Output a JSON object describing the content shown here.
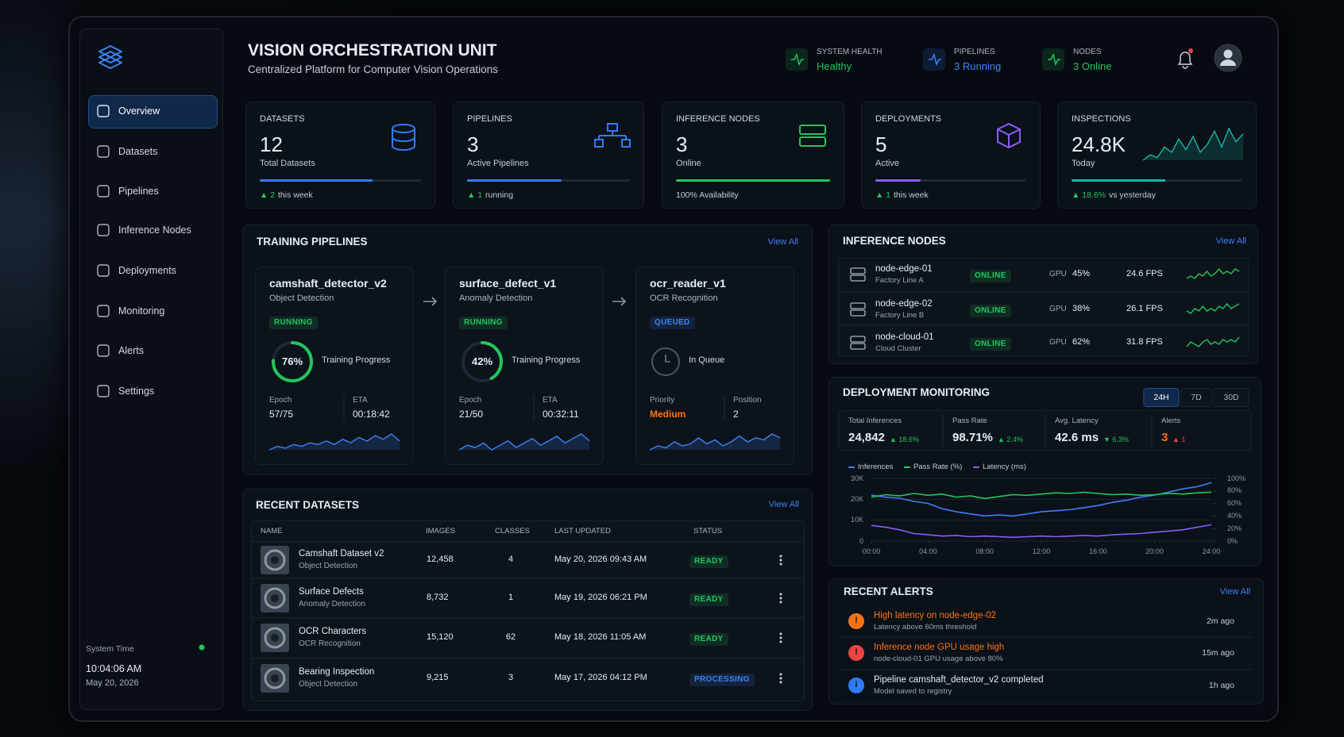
{
  "sidebar": {
    "nav": [
      "Overview",
      "Datasets",
      "Pipelines",
      "Inference Nodes",
      "Deployments",
      "Monitoring",
      "Alerts",
      "Settings"
    ],
    "system_time": {
      "label": "System Time",
      "time": "10:04:06 AM",
      "date": "May 20, 2026"
    }
  },
  "header": {
    "title": "VISION ORCHESTRATION UNIT",
    "subtitle": "Centralized Platform for Computer Vision Operations",
    "status": [
      {
        "label": "SYSTEM HEALTH",
        "value": "Healthy",
        "color": "#22c55e"
      },
      {
        "label": "PIPELINES",
        "value": "3 Running",
        "color": "#3b82f6"
      },
      {
        "label": "NODES",
        "value": "3 Online",
        "color": "#22c55e"
      }
    ]
  },
  "kpis": [
    {
      "label": "DATASETS",
      "value": 12,
      "caption": "Total Datasets",
      "trend_value": "▲ 2",
      "trend_text": "this week",
      "color": "#2f7cf6"
    },
    {
      "label": "PIPELINES",
      "value": 3,
      "caption": "Active Pipelines",
      "trend_value": "▲ 1",
      "trend_text": "running",
      "color": "#2f7cf6"
    },
    {
      "label": "INFERENCE NODES",
      "value": 3,
      "caption": "Online",
      "trend_text": "100% Availability",
      "color": "#22c55e"
    },
    {
      "label": "DEPLOYMENTS",
      "value": 5,
      "caption": "Active",
      "trend_value": "▲ 1",
      "trend_text": "this week",
      "color": "#8b5cf6"
    },
    {
      "label": "INSPECTIONS",
      "value": "24.8K",
      "caption": "Today",
      "trend_value": "▲ 18.6%",
      "trend_text": "vs yesterday",
      "color": "#14b8a6",
      "trend": [
        4,
        6,
        5,
        9,
        7,
        12,
        8,
        13,
        7,
        10,
        15,
        9,
        16,
        11,
        14
      ]
    }
  ],
  "training_pipelines": {
    "title": "TRAINING PIPELINES",
    "view_all": "View All",
    "items": [
      {
        "name": "camshaft_detector_v2",
        "type": "Object Detection",
        "status": "RUNNING",
        "status_color": "#22c55e",
        "progress": 76,
        "progress_text": "76%",
        "progress_label": "Training Progress",
        "stat1_label": "Epoch",
        "stat1": "57/75",
        "stat2_label": "ETA",
        "stat2": "00:18:42",
        "trend": [
          3,
          5,
          4,
          6,
          5,
          7,
          6,
          8,
          6,
          9,
          7,
          10,
          8,
          11,
          9,
          12,
          8
        ]
      },
      {
        "name": "surface_defect_v1",
        "type": "Anomaly Detection",
        "status": "RUNNING",
        "status_color": "#22c55e",
        "progress": 42,
        "progress_text": "42%",
        "progress_label": "Training Progress",
        "stat1_label": "Epoch",
        "stat1": "21/50",
        "stat2_label": "ETA",
        "stat2": "00:32:11",
        "trend": [
          4,
          6,
          5,
          7,
          4,
          6,
          8,
          5,
          7,
          9,
          6,
          8,
          10,
          7,
          9,
          11,
          8
        ]
      },
      {
        "name": "ocr_reader_v1",
        "type": "OCR Recognition",
        "status": "QUEUED",
        "status_color": "#3b82f6",
        "progress_label": "In Queue",
        "stat1_label": "Priority",
        "stat1": "Medium",
        "stat1_color": "#f97316",
        "stat2_label": "Position",
        "stat2": 2,
        "trend": [
          3,
          5,
          4,
          7,
          5,
          6,
          9,
          6,
          8,
          5,
          7,
          10,
          7,
          9,
          8,
          11,
          9
        ]
      }
    ]
  },
  "recent_datasets": {
    "title": "RECENT DATASETS",
    "view_all": "View All",
    "columns": [
      "NAME",
      "IMAGES",
      "CLASSES",
      "LAST UPDATED",
      "STATUS"
    ],
    "rows": [
      {
        "name": "Camshaft Dataset v2",
        "type": "Object Detection",
        "images": "12,458",
        "classes": 4,
        "updated": "May 20, 2026 09:43 AM",
        "status": "READY",
        "status_color": "#22c55e"
      },
      {
        "name": "Surface Defects",
        "type": "Anomaly Detection",
        "images": "8,732",
        "classes": 1,
        "updated": "May 19, 2026 06:21 PM",
        "status": "READY",
        "status_color": "#22c55e"
      },
      {
        "name": "OCR Characters",
        "type": "OCR Recognition",
        "images": "15,120",
        "classes": 62,
        "updated": "May 18, 2026 11:05 AM",
        "status": "READY",
        "status_color": "#22c55e"
      },
      {
        "name": "Bearing Inspection",
        "type": "Object Detection",
        "images": "9,215",
        "classes": 3,
        "updated": "May 17, 2026 04:12 PM",
        "status": "PROCESSING",
        "status_color": "#3b82f6"
      }
    ]
  },
  "inference_nodes": {
    "title": "INFERENCE NODES",
    "view_all": "View All",
    "rows": [
      {
        "name": "node-edge-01",
        "location": "Factory Line A",
        "status": "ONLINE",
        "status_color": "#22c55e",
        "gpu_label": "GPU",
        "gpu": "45%",
        "fps": "24.6 FPS",
        "trend": [
          4,
          5,
          4,
          6,
          5,
          7,
          5,
          6,
          8,
          6,
          7,
          6,
          8,
          7
        ]
      },
      {
        "name": "node-edge-02",
        "location": "Factory Line B",
        "status": "ONLINE",
        "status_color": "#22c55e",
        "gpu_label": "GPU",
        "gpu": "38%",
        "fps": "26.1 FPS",
        "trend": [
          5,
          4,
          6,
          5,
          7,
          5,
          6,
          5,
          7,
          6,
          8,
          6,
          7,
          8
        ]
      },
      {
        "name": "node-cloud-01",
        "location": "Cloud Cluster",
        "status": "ONLINE",
        "status_color": "#22c55e",
        "gpu_label": "GPU",
        "gpu": "62%",
        "fps": "31.8 FPS",
        "trend": [
          4,
          6,
          5,
          4,
          6,
          7,
          5,
          6,
          5,
          7,
          6,
          7,
          6,
          8
        ]
      }
    ]
  },
  "deployment_monitoring": {
    "title": "DEPLOYMENT MONITORING",
    "ranges": [
      "24H",
      "7D",
      "30D"
    ],
    "stats": [
      {
        "label": "Total Inferences",
        "value": "24,842",
        "change": "▲ 18.6%",
        "change_color": "#22c55e"
      },
      {
        "label": "Pass Rate",
        "value": "98.71%",
        "change": "▲ 2.4%",
        "change_color": "#22c55e"
      },
      {
        "label": "Avg. Latency",
        "value": "42.6 ms",
        "change": "▼ 6.3%",
        "change_color": "#22c55e"
      },
      {
        "label": "Alerts",
        "value": 3,
        "value_color": "#f97316",
        "change": "▲ 1",
        "change_color": "#ef4444"
      }
    ]
  },
  "chart_data": {
    "type": "line",
    "x": [
      0,
      1,
      2,
      3,
      4,
      5,
      6,
      7,
      8,
      9,
      10,
      11,
      12,
      13,
      14,
      15,
      16,
      17,
      18,
      19,
      20,
      21,
      22,
      23,
      24
    ],
    "xlim": [
      0,
      24
    ],
    "xticks": [
      {
        "value": 0,
        "label": "00:00"
      },
      {
        "value": 4,
        "label": "04:00"
      },
      {
        "value": 8,
        "label": "08:00"
      },
      {
        "value": 12,
        "label": "12:00"
      },
      {
        "value": 16,
        "label": "16:00"
      },
      {
        "value": 20,
        "label": "20:00"
      },
      {
        "value": 24,
        "label": "24:00"
      }
    ],
    "ylim": [
      0,
      30000
    ],
    "yticks": [
      0,
      {
        "value": 10000,
        "label": "10K"
      },
      {
        "value": 20000,
        "label": "20K"
      },
      {
        "value": 30000,
        "label": "30K"
      }
    ],
    "y2lim": [
      0,
      100
    ],
    "y2ticks": [
      {
        "value": 0,
        "label": "0%"
      },
      {
        "value": 20,
        "label": "20%"
      },
      {
        "value": 40,
        "label": "40%"
      },
      {
        "value": 60,
        "label": "60%"
      },
      {
        "value": 80,
        "label": "80%"
      },
      {
        "value": 100,
        "label": "100%"
      }
    ],
    "grid": true,
    "series": [
      {
        "name": "Inferences",
        "color": "#3b82f6",
        "values": [
          22000,
          21000,
          20500,
          19000,
          18000,
          15500,
          14000,
          13000,
          12000,
          12500,
          12000,
          13000,
          14000,
          14500,
          15000,
          16000,
          17000,
          18500,
          19500,
          21000,
          22000,
          23500,
          25000,
          26000,
          28000
        ]
      },
      {
        "name": "Pass Rate (%)",
        "color": "#22c55e",
        "axis": "y2",
        "values": [
          70,
          74,
          72,
          76,
          73,
          75,
          70,
          72,
          68,
          71,
          74,
          73,
          75,
          77,
          76,
          78,
          76,
          74,
          75,
          73,
          74,
          76,
          75,
          77,
          78
        ]
      },
      {
        "name": "Latency (ms)",
        "color": "#8b5cf6",
        "axis": "y2",
        "values": [
          25,
          22,
          18,
          12,
          10,
          8,
          9,
          7,
          8,
          7,
          6,
          7,
          8,
          7,
          8,
          9,
          8,
          10,
          11,
          12,
          14,
          16,
          18,
          22,
          26
        ]
      }
    ]
  },
  "recent_alerts": {
    "title": "RECENT ALERTS",
    "view_all": "View All",
    "items": [
      {
        "icon": "!",
        "title": "High latency on node-edge-02",
        "detail": "Latency above 60ms threshold",
        "time": "2m ago",
        "color": "#f97316",
        "title_color": "#f97316"
      },
      {
        "icon": "!",
        "title": "Inference node GPU usage high",
        "detail": "node-cloud-01 GPU usage above 80%",
        "time": "15m ago",
        "color": "#ef4444",
        "title_color": "#f97316"
      },
      {
        "icon": "i",
        "title": "Pipeline camshaft_detector_v2 completed",
        "detail": "Model saved to registry",
        "time": "1h ago",
        "color": "#2f7cf6",
        "title_color": "#e6edf5"
      }
    ]
  }
}
